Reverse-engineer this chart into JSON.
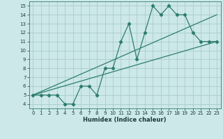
{
  "xlabel": "Humidex (Indice chaleur)",
  "background_color": "#cce8e8",
  "grid_color": "#aacccc",
  "line_color": "#2e7d6e",
  "xlim": [
    -0.5,
    23.5
  ],
  "ylim": [
    3.5,
    15.5
  ],
  "xticks": [
    0,
    1,
    2,
    3,
    4,
    5,
    6,
    7,
    8,
    9,
    10,
    11,
    12,
    13,
    14,
    15,
    16,
    17,
    18,
    19,
    20,
    21,
    22,
    23
  ],
  "yticks": [
    4,
    5,
    6,
    7,
    8,
    9,
    10,
    11,
    12,
    13,
    14,
    15
  ],
  "line1_x": [
    0,
    1,
    2,
    3,
    4,
    5,
    6,
    7,
    8,
    9,
    10,
    11,
    12,
    13,
    14,
    15,
    16,
    17,
    18,
    19,
    20,
    21,
    22,
    23
  ],
  "line1_y": [
    5,
    5,
    5,
    5,
    4,
    4,
    6,
    6,
    5,
    8,
    8,
    11,
    13,
    9,
    12,
    15,
    14,
    15,
    14,
    14,
    12,
    11,
    11,
    11
  ],
  "line2_x": [
    0,
    23
  ],
  "line2_y": [
    5,
    11
  ],
  "line3_x": [
    0,
    23
  ],
  "line3_y": [
    5,
    14
  ]
}
